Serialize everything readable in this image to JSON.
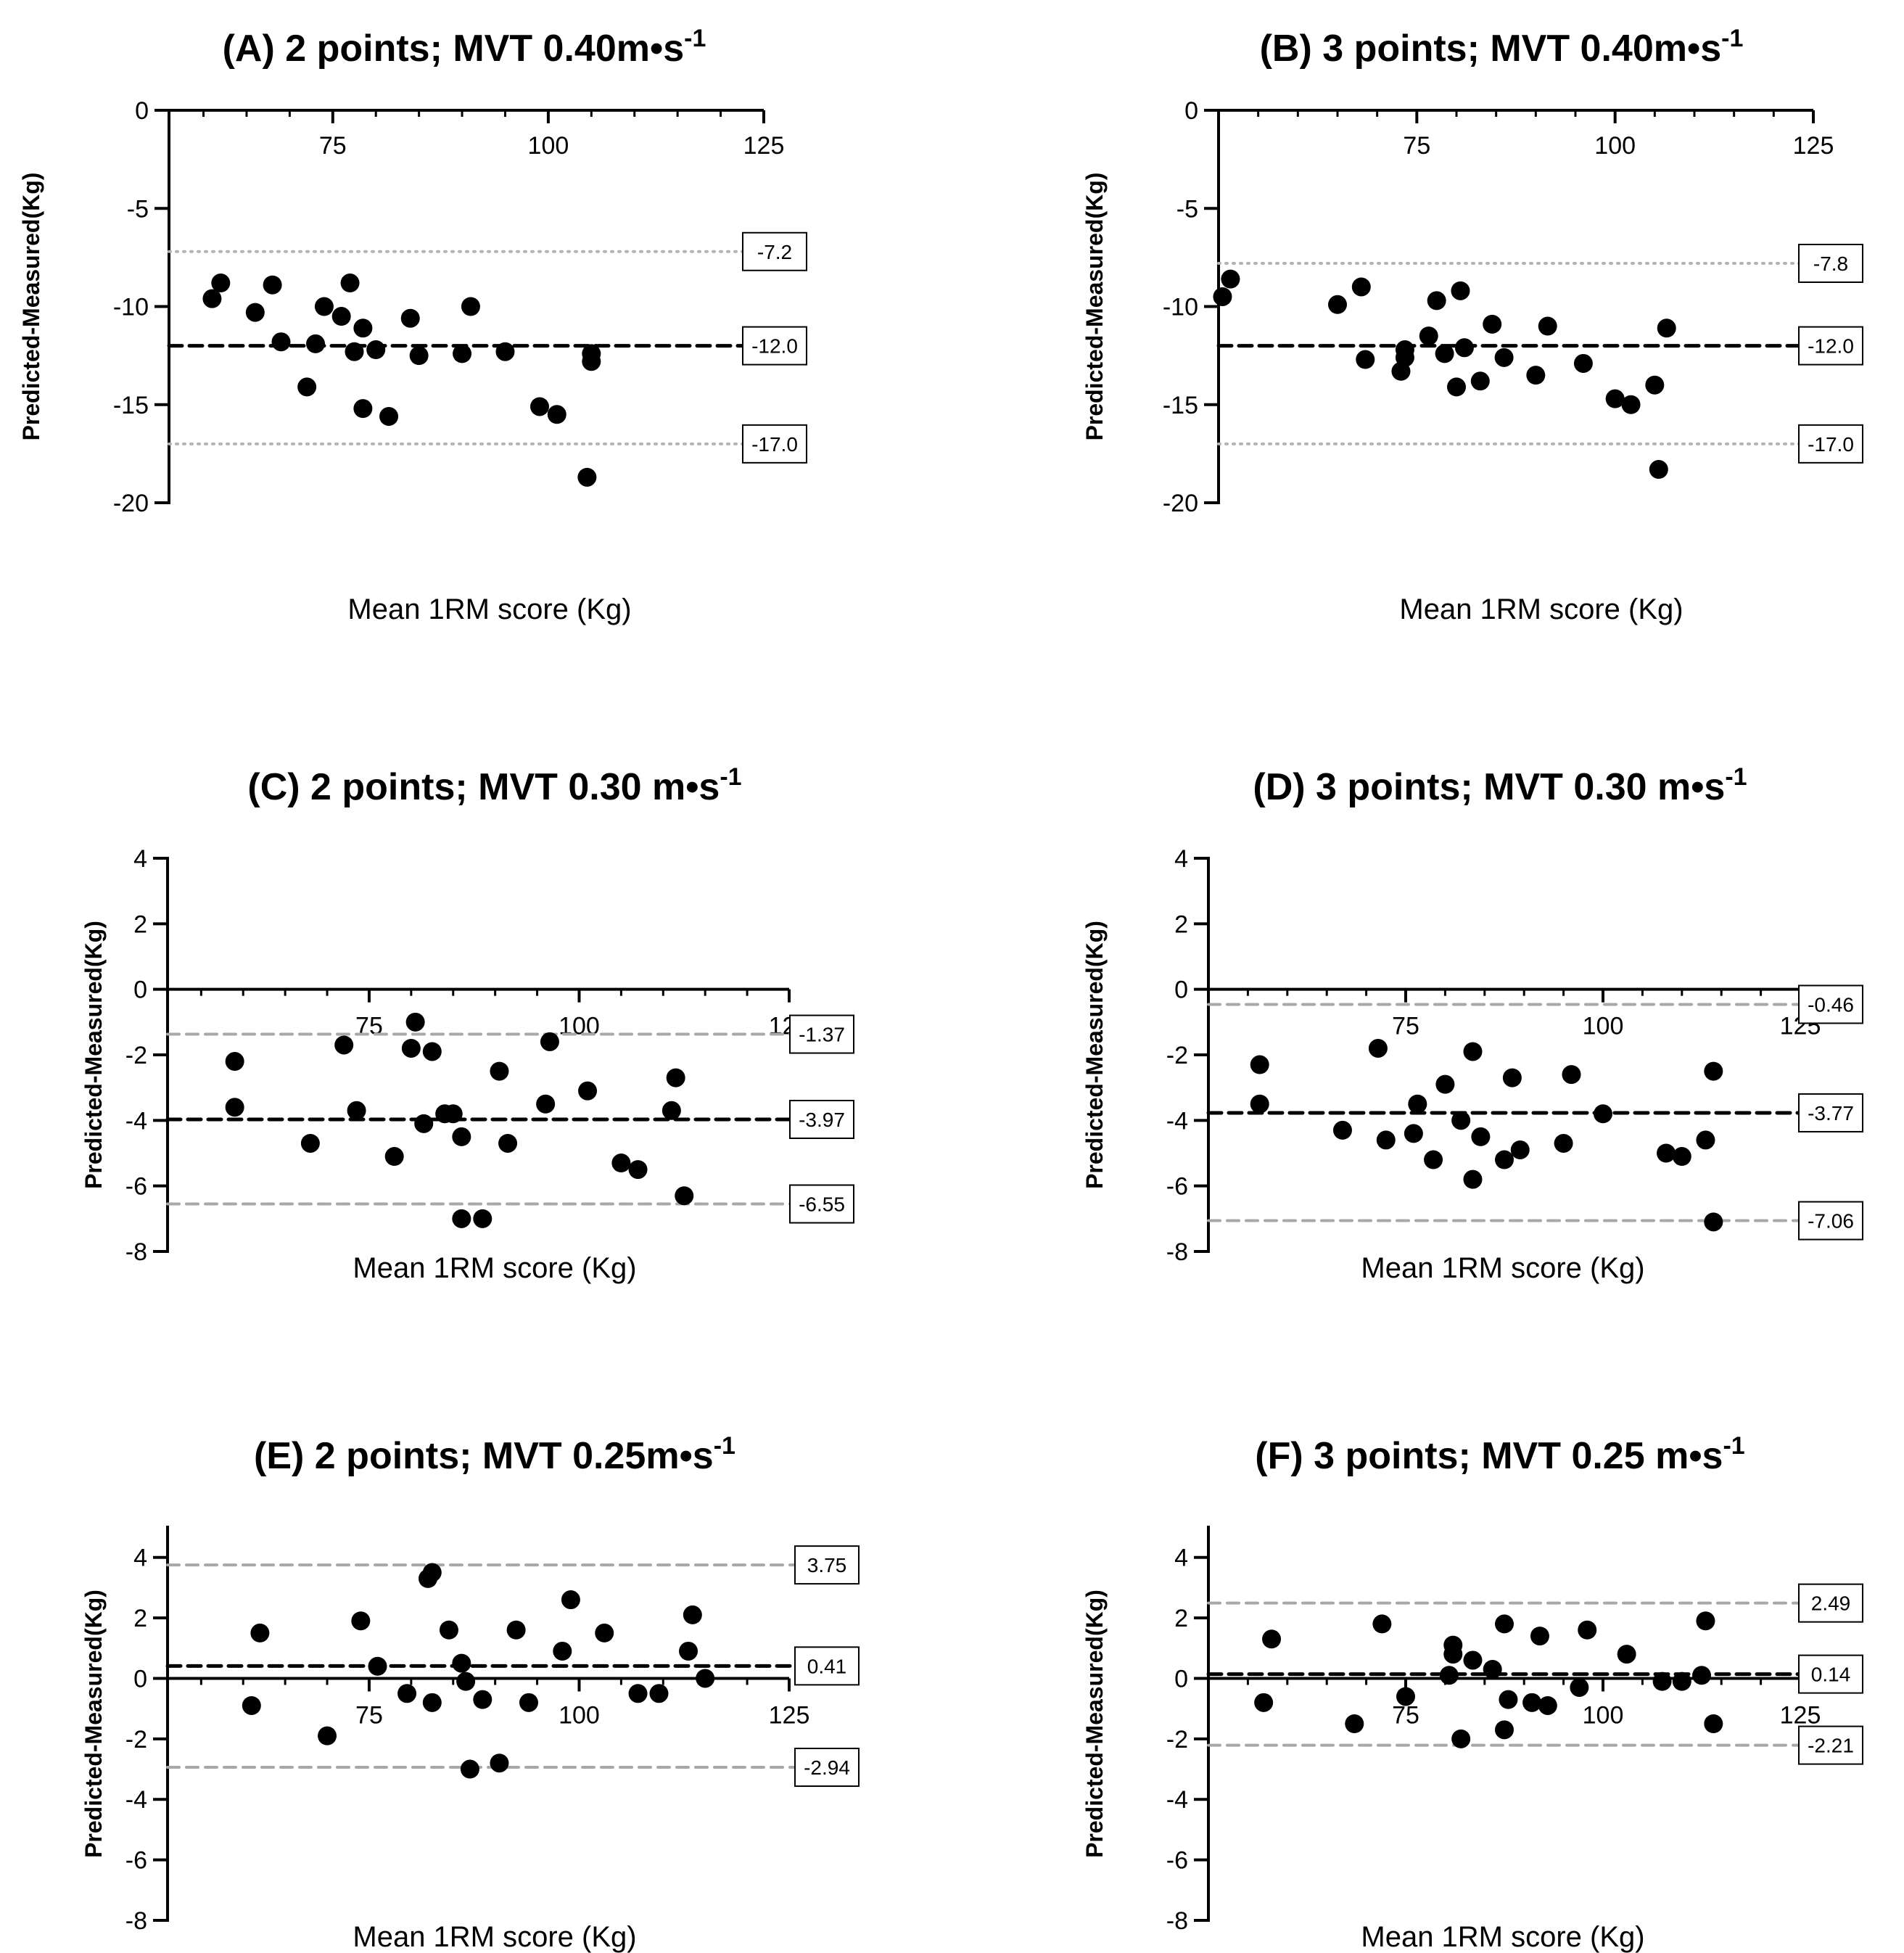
{
  "chart_data": [
    {
      "id": "A",
      "type": "scatter",
      "title": "(A) 2 points; MVT 0.40m•s",
      "title_sup": "-1",
      "xlabel": "Mean 1RM score (Kg)",
      "ylabel": "Predicted-Measured(Kg)",
      "xlim": [
        56,
        125
      ],
      "ylim": [
        -20,
        0
      ],
      "xticks": [
        75,
        100,
        125
      ],
      "yticks": [
        0,
        -5,
        -10,
        -15,
        -20
      ],
      "xtick_labels": [
        "75",
        "100",
        "125"
      ],
      "ytick_labels": [
        "0",
        "-5",
        "-10",
        "-15",
        "-20"
      ],
      "mean": -12.0,
      "upper": -7.2,
      "lower": -17.0,
      "mean_label": "-12.0",
      "upper_label": "-7.2",
      "lower_label": "-17.0",
      "loa_style": "dotted",
      "points": [
        [
          61,
          -9.6
        ],
        [
          62,
          -8.8
        ],
        [
          66,
          -10.3
        ],
        [
          68,
          -8.9
        ],
        [
          69,
          -11.8
        ],
        [
          72,
          -14.1
        ],
        [
          73,
          -11.9
        ],
        [
          74,
          -10.0
        ],
        [
          76,
          -10.5
        ],
        [
          77,
          -8.8
        ],
        [
          77.5,
          -12.3
        ],
        [
          78.5,
          -11.1
        ],
        [
          78.5,
          -15.2
        ],
        [
          80,
          -12.2
        ],
        [
          81.5,
          -15.6
        ],
        [
          84,
          -10.6
        ],
        [
          85,
          -12.5
        ],
        [
          90,
          -12.4
        ],
        [
          91,
          -10.0
        ],
        [
          95,
          -12.3
        ],
        [
          99,
          -15.1
        ],
        [
          101,
          -15.5
        ],
        [
          104.5,
          -18.7
        ],
        [
          105,
          -12.4
        ],
        [
          105,
          -12.8
        ]
      ]
    },
    {
      "id": "B",
      "type": "scatter",
      "title": "(B) 3 points; MVT 0.40m•s",
      "title_sup": "-1",
      "xlabel": "Mean 1RM score (Kg)",
      "ylabel": "Predicted-Measured(Kg)",
      "xlim": [
        50,
        125
      ],
      "ylim": [
        -20,
        0
      ],
      "xticks": [
        75,
        100,
        125
      ],
      "yticks": [
        0,
        -5,
        -10,
        -15,
        -20
      ],
      "xtick_labels": [
        "75",
        "100",
        "125"
      ],
      "ytick_labels": [
        "0",
        "-5",
        "-10",
        "-15",
        "-20"
      ],
      "mean": -12.0,
      "upper": -7.8,
      "lower": -17.0,
      "mean_label": "-12.0",
      "upper_label": "-7.8",
      "lower_label": "-17.0",
      "loa_style": "dotted",
      "points": [
        [
          50.5,
          -9.5
        ],
        [
          51.5,
          -8.6
        ],
        [
          65,
          -9.9
        ],
        [
          68,
          -9.0
        ],
        [
          68.5,
          -12.7
        ],
        [
          73,
          -13.3
        ],
        [
          73.5,
          -12.2
        ],
        [
          73.5,
          -12.6
        ],
        [
          76.5,
          -11.5
        ],
        [
          77.5,
          -9.7
        ],
        [
          78.5,
          -12.4
        ],
        [
          80,
          -14.1
        ],
        [
          80.5,
          -9.2
        ],
        [
          81,
          -12.1
        ],
        [
          83,
          -13.8
        ],
        [
          84.5,
          -10.9
        ],
        [
          86,
          -12.6
        ],
        [
          90,
          -13.5
        ],
        [
          91.5,
          -11.0
        ],
        [
          96,
          -12.9
        ],
        [
          100,
          -14.7
        ],
        [
          102,
          -15.0
        ],
        [
          105,
          -14.0
        ],
        [
          105.5,
          -18.3
        ],
        [
          106.5,
          -11.1
        ]
      ]
    },
    {
      "id": "C",
      "type": "scatter",
      "title": "(C) 2 points; MVT 0.30 m•s",
      "title_sup": "-1",
      "xlabel": "Mean 1RM score (Kg)",
      "ylabel": "Predicted-Measured(Kg)",
      "xlim": [
        51,
        125
      ],
      "ylim": [
        -8,
        4
      ],
      "xticks": [
        75,
        100,
        125
      ],
      "yticks": [
        4,
        2,
        0,
        -2,
        -4,
        -6,
        -8
      ],
      "xtick_labels": [
        "75",
        "100",
        "125"
      ],
      "ytick_labels": [
        "4",
        "2",
        "0",
        "-2",
        "-4",
        "-6",
        "-8"
      ],
      "mean": -3.97,
      "upper": -1.37,
      "lower": -6.55,
      "mean_label": "-3.97",
      "upper_label": "-1.37",
      "lower_label": "-6.55",
      "loa_style": "dashed",
      "points": [
        [
          59,
          -2.2
        ],
        [
          59,
          -3.6
        ],
        [
          68,
          -4.7
        ],
        [
          72,
          -1.7
        ],
        [
          73.5,
          -3.7
        ],
        [
          78,
          -5.1
        ],
        [
          80,
          -1.8
        ],
        [
          80.5,
          -1.0
        ],
        [
          81.5,
          -4.1
        ],
        [
          82.5,
          -1.9
        ],
        [
          84,
          -3.8
        ],
        [
          85,
          -3.8
        ],
        [
          86,
          -4.5
        ],
        [
          86,
          -7.0
        ],
        [
          88.5,
          -7.0
        ],
        [
          90.5,
          -2.5
        ],
        [
          91.5,
          -4.7
        ],
        [
          96,
          -3.5
        ],
        [
          96.5,
          -1.6
        ],
        [
          101,
          -3.1
        ],
        [
          105,
          -5.3
        ],
        [
          107,
          -5.5
        ],
        [
          111,
          -3.7
        ],
        [
          111.5,
          -2.7
        ],
        [
          112.5,
          -6.3
        ]
      ]
    },
    {
      "id": "D",
      "type": "scatter",
      "title": "(D) 3 points; MVT 0.30 m•s",
      "title_sup": "-1",
      "xlabel": "Mean 1RM score (Kg)",
      "ylabel": "Predicted-Measured(Kg)",
      "xlim": [
        50,
        125
      ],
      "ylim": [
        -8,
        4
      ],
      "xticks": [
        75,
        100,
        125
      ],
      "yticks": [
        4,
        2,
        0,
        -2,
        -4,
        -6,
        -8
      ],
      "xtick_labels": [
        "75",
        "100",
        "125"
      ],
      "ytick_labels": [
        "4",
        "2",
        "0",
        "-2",
        "-4",
        "-6",
        "-8"
      ],
      "mean": -3.77,
      "upper": -0.46,
      "lower": -7.06,
      "mean_label": "-3.77",
      "upper_label": "-0.46",
      "lower_label": "-7.06",
      "loa_style": "dashed",
      "points": [
        [
          56.5,
          -2.3
        ],
        [
          56.5,
          -3.5
        ],
        [
          67,
          -4.3
        ],
        [
          71.5,
          -1.8
        ],
        [
          72.5,
          -4.6
        ],
        [
          76,
          -4.4
        ],
        [
          76.5,
          -3.5
        ],
        [
          78.5,
          -5.2
        ],
        [
          80,
          -2.9
        ],
        [
          82,
          -4.0
        ],
        [
          83.5,
          -1.9
        ],
        [
          83.5,
          -5.8
        ],
        [
          84.5,
          -4.5
        ],
        [
          87.5,
          -5.2
        ],
        [
          88.5,
          -2.7
        ],
        [
          89.5,
          -4.9
        ],
        [
          95,
          -4.7
        ],
        [
          96,
          -2.6
        ],
        [
          100,
          -3.8
        ],
        [
          108,
          -5.0
        ],
        [
          110,
          -5.1
        ],
        [
          113,
          -4.6
        ],
        [
          114,
          -2.5
        ],
        [
          114,
          -7.1
        ]
      ]
    },
    {
      "id": "E",
      "type": "scatter",
      "title": "(E) 2 points; MVT 0.25m•s",
      "title_sup": "-1",
      "xlabel": "Mean 1RM score (Kg)",
      "ylabel": "Predicted-Measured(Kg)",
      "xlim": [
        51,
        125
      ],
      "ylim": [
        -8,
        5
      ],
      "xticks": [
        75,
        100,
        125
      ],
      "yticks": [
        4,
        2,
        0,
        -2,
        -4,
        -6,
        -8
      ],
      "xtick_labels": [
        "75",
        "100",
        "125"
      ],
      "ytick_labels": [
        "4",
        "2",
        "0",
        "-2",
        "-4",
        "-6",
        "-8"
      ],
      "mean": 0.41,
      "upper": 3.75,
      "lower": -2.94,
      "mean_label": "0.41",
      "upper_label": "3.75",
      "lower_label": "-2.94",
      "loa_style": "dashed",
      "points": [
        [
          61,
          -0.9
        ],
        [
          62,
          1.5
        ],
        [
          70,
          -1.9
        ],
        [
          74,
          1.9
        ],
        [
          76,
          0.4
        ],
        [
          79.5,
          -0.5
        ],
        [
          82,
          3.3
        ],
        [
          82.5,
          3.5
        ],
        [
          82.5,
          -0.8
        ],
        [
          84.5,
          1.6
        ],
        [
          86,
          0.5
        ],
        [
          86.5,
          -0.1
        ],
        [
          87,
          -3.0
        ],
        [
          88.5,
          -0.7
        ],
        [
          90.5,
          -2.8
        ],
        [
          92.5,
          1.6
        ],
        [
          94,
          -0.8
        ],
        [
          98,
          0.9
        ],
        [
          99,
          2.6
        ],
        [
          103,
          1.5
        ],
        [
          107,
          -0.5
        ],
        [
          109.5,
          -0.5
        ],
        [
          113,
          0.9
        ],
        [
          113.5,
          2.1
        ],
        [
          115,
          0.0
        ]
      ]
    },
    {
      "id": "F",
      "type": "scatter",
      "title": "(F) 3 points; MVT 0.25 m•s",
      "title_sup": "-1",
      "xlabel": "Mean 1RM score (Kg)",
      "ylabel": "Predicted-Measured(Kg)",
      "xlim": [
        50,
        125
      ],
      "ylim": [
        -8,
        5
      ],
      "xticks": [
        75,
        100,
        125
      ],
      "yticks": [
        4,
        2,
        0,
        -2,
        -4,
        -6,
        -8
      ],
      "xtick_labels": [
        "75",
        "100",
        "125"
      ],
      "ytick_labels": [
        "4",
        "2",
        "0",
        "-2",
        "-4",
        "-6",
        "-8"
      ],
      "mean": 0.14,
      "upper": 2.49,
      "lower": -2.21,
      "mean_label": "0.14",
      "upper_label": "2.49",
      "lower_label": "-2.21",
      "loa_style": "dashed",
      "points": [
        [
          57,
          -0.8
        ],
        [
          58,
          1.3
        ],
        [
          68.5,
          -1.5
        ],
        [
          72,
          1.8
        ],
        [
          75,
          -0.6
        ],
        [
          80.5,
          0.1
        ],
        [
          81,
          1.1
        ],
        [
          81,
          0.8
        ],
        [
          82,
          -2.0
        ],
        [
          83.5,
          0.6
        ],
        [
          86,
          0.3
        ],
        [
          87.5,
          1.8
        ],
        [
          87.5,
          -1.7
        ],
        [
          88,
          -0.7
        ],
        [
          91,
          -0.8
        ],
        [
          92,
          1.4
        ],
        [
          93,
          -0.9
        ],
        [
          97,
          -0.3
        ],
        [
          98,
          1.6
        ],
        [
          103,
          0.8
        ],
        [
          107.5,
          -0.1
        ],
        [
          110,
          -0.1
        ],
        [
          112.5,
          0.1
        ],
        [
          113,
          1.9
        ],
        [
          114,
          -1.5
        ]
      ]
    }
  ]
}
